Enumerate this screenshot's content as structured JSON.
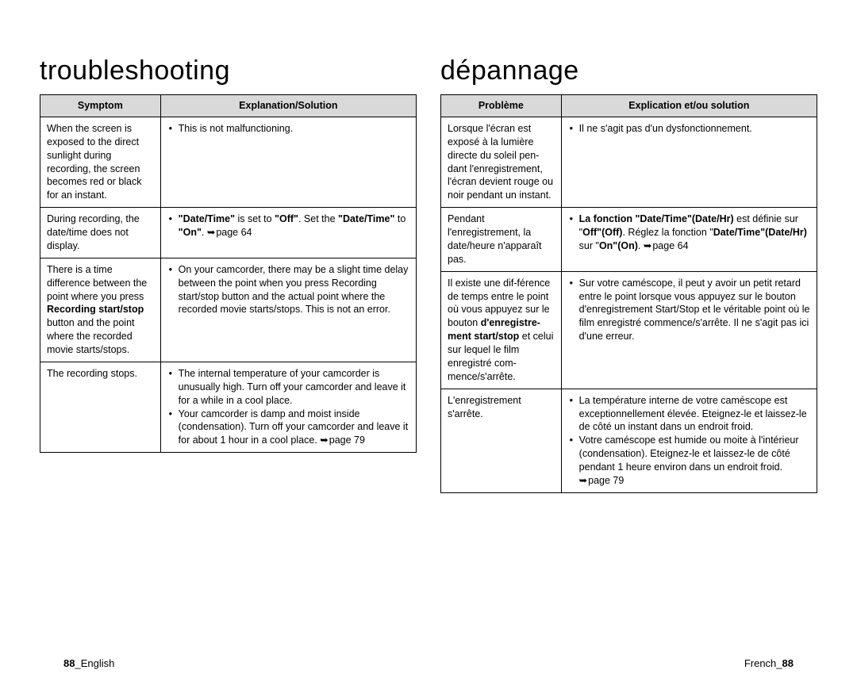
{
  "left": {
    "title": "troubleshooting",
    "headers": {
      "symptom": "Symptom",
      "explanation": "Explanation/Solution"
    },
    "rows": [
      {
        "symptom_html": "When the screen is exposed to the direct sunlight during recording, the screen becomes red or black for an instant.",
        "explanation_html": "<ul><li>This is not malfunctioning.</li></ul>"
      },
      {
        "symptom_html": "During recording, the date/time does not display.",
        "explanation_html": "<ul><li><b>\"Date/Time\"</b> is set to <b>\"Off\"</b>. Set the <b>\"Date/Time\"</b> to <b>\"On\"</b>. <span class='arrow'></span>page 64</li></ul>"
      },
      {
        "symptom_html": "There is a time difference between the point where you press <b>Recording start/stop</b> button and the point where the recorded movie starts/stops.",
        "explanation_html": "<ul><li>On your camcorder, there may be a slight time delay between the point when you press Recording start/stop button and the actual point where the recorded movie starts/stops. This is not an error.</li></ul>"
      },
      {
        "symptom_html": "The recording stops.",
        "explanation_html": "<ul><li>The internal temperature of your camcorder is unusually high. Turn off your camcorder and leave it for a while in a cool place.</li><li>Your camcorder is damp and moist inside (condensation). Turn off your camcorder and leave it for about 1 hour in a cool place. <span class='arrow'></span>page 79</li></ul>"
      }
    ],
    "footer_html": "<b>88</b>_English"
  },
  "right": {
    "title": "dépannage",
    "headers": {
      "symptom": "Problème",
      "explanation": "Explication et/ou solution"
    },
    "rows": [
      {
        "symptom_html": "Lorsque l'écran est exposé à la lumière directe du soleil pen-dant l'enregistrement, l'écran devient rouge ou noir pendant un instant.",
        "explanation_html": "<ul><li>Il ne s'agit pas d'un dysfonctionnement.</li></ul>"
      },
      {
        "symptom_html": "Pendant l'enregistrement, la date/heure n'apparaît pas.",
        "explanation_html": "<ul><li><b>La fonction \"Date/Time\"(Date/Hr)</b> est définie sur \"<b>Off\"(Off)</b>. Réglez la fonction \"<b>Date/Time\"(Date/Hr)</b> sur \"<b>On\"(On)</b>. <span class='arrow'></span>page 64</li></ul>"
      },
      {
        "symptom_html": "Il existe une dif-férence de temps entre le point où vous appuyez sur le bouton <b>d'enregistre-ment start/stop</b> et celui sur lequel le film enregistré com-mence/s'arrête.",
        "explanation_html": "<ul><li>Sur votre caméscope, il peut y avoir un petit retard entre le point lorsque vous appuyez sur le bouton d'enregistrement Start/Stop et le véritable point où le film enregistré commence/s'arrête. Il ne s'agit pas ici d'une erreur.</li></ul>"
      },
      {
        "symptom_html": "L'enregistrement s'arrête.",
        "explanation_html": "<ul><li>La température interne de votre caméscope est exceptionnellement élevée. Eteignez-le et laissez-le de côté un instant dans un endroit froid.</li><li>Votre caméscope est humide ou moite à l'intérieur (condensation). Eteignez-le et laissez-le de côté pendant 1 heure environ dans un endroit froid. <span class='arrow'></span>page 79</li></ul>"
      }
    ],
    "footer_html": "French_<b>88</b>"
  },
  "style": {
    "header_bg": "#d9d9d9",
    "border_color": "#000000",
    "title_fontsize": 34,
    "body_fontsize": 12.5
  }
}
